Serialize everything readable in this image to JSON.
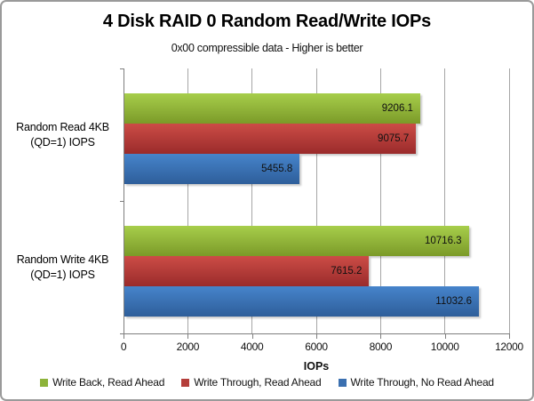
{
  "chart_data": {
    "type": "bar",
    "orientation": "horizontal",
    "title": "4 Disk RAID 0 Random Read/Write IOPs",
    "subtitle": "0x00 compressible data - Higher is better",
    "xlabel": "IOPs",
    "xlim": [
      0,
      12000
    ],
    "xticks": [
      0,
      2000,
      4000,
      6000,
      8000,
      10000,
      12000
    ],
    "grid": true,
    "legend_position": "bottom",
    "categories": [
      {
        "line1": "Random Read 4KB",
        "line2": "(QD=1) IOPS"
      },
      {
        "line1": "Random Write 4KB",
        "line2": "(QD=1) IOPS"
      }
    ],
    "series": [
      {
        "name": "Write Back, Read Ahead",
        "values": [
          9206.1,
          10716.3
        ],
        "value_labels": [
          "9206.1",
          "10716.3"
        ],
        "color_top": "#a7ce4b",
        "color_bottom": "#7b9a28",
        "legend_color": "#8db33a"
      },
      {
        "name": "Write Through, Read Ahead",
        "values": [
          9075.7,
          7615.2
        ],
        "value_labels": [
          "9075.7",
          "7615.2"
        ],
        "color_top": "#cc4c46",
        "color_bottom": "#9a2b2b",
        "legend_color": "#b43e3a"
      },
      {
        "name": "Write Through, No Read Ahead",
        "values": [
          5455.8,
          11032.6
        ],
        "value_labels": [
          "5455.8",
          "11032.6"
        ],
        "color_top": "#4684cb",
        "color_bottom": "#2e5e9a",
        "legend_color": "#3b70b0"
      }
    ]
  }
}
